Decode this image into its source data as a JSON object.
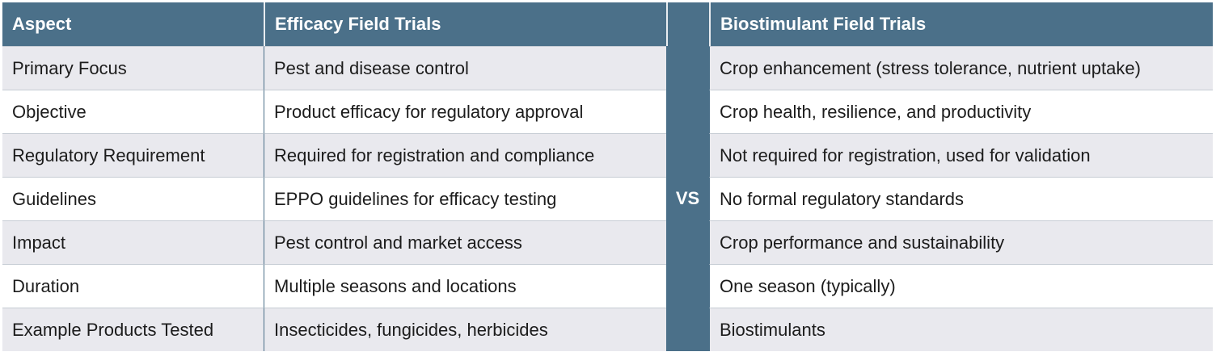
{
  "table": {
    "headers": [
      "Aspect",
      "Efficacy Field Trials",
      "Biostimulant Field Trials"
    ],
    "divider_label": "VS",
    "rows": [
      [
        "Primary Focus",
        "Pest and disease control",
        "Crop enhancement (stress tolerance, nutrient uptake)"
      ],
      [
        "Objective",
        "Product efficacy for regulatory approval",
        "Crop health, resilience, and productivity"
      ],
      [
        "Regulatory Requirement",
        "Required for registration and compliance",
        "Not required for registration, used for validation"
      ],
      [
        "Guidelines",
        "EPPO guidelines for efficacy testing",
        "No formal regulatory standards"
      ],
      [
        "Impact",
        "Pest control and market access",
        "Crop performance and sustainability"
      ],
      [
        "Duration",
        "Multiple seasons and locations",
        "One season (typically)"
      ],
      [
        "Example Products Tested",
        "Insecticides, fungicides, herbicides",
        "Biostimulants"
      ]
    ]
  }
}
